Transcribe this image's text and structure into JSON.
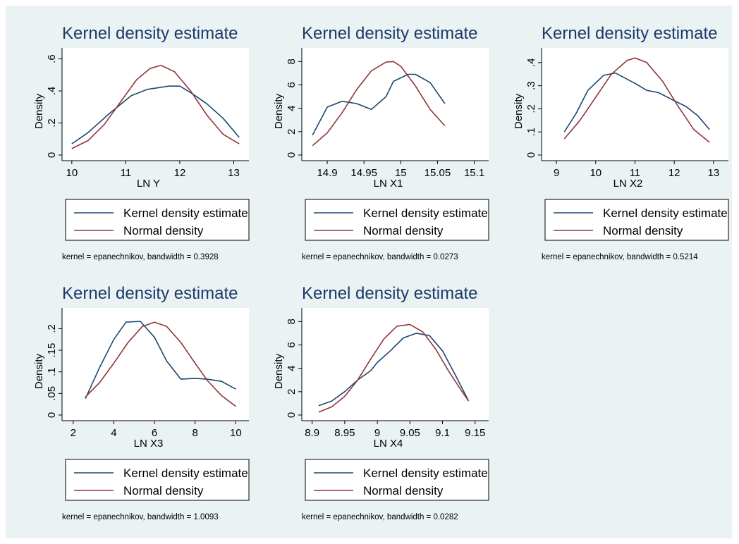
{
  "colors": {
    "background": "#eaf2f3",
    "kernel_line": "#1a476f",
    "normal_line": "#90353b",
    "title": "#1a3a6b"
  },
  "chart_data": [
    {
      "type": "line",
      "title": "Kernel density estimate",
      "xlabel": "LN Y",
      "ylabel": "Density",
      "xticks": [
        10,
        11,
        12,
        13
      ],
      "yticks": [
        0,
        0.2,
        0.4,
        0.6
      ],
      "ytick_labels": [
        "0",
        ".2",
        ".4",
        ".6"
      ],
      "xlim": [
        9.95,
        13.15
      ],
      "ylim": [
        0,
        0.62
      ],
      "series": [
        {
          "name": "Kernel density estimate",
          "color": "#1a476f",
          "x": [
            10.0,
            10.3,
            10.7,
            11.1,
            11.4,
            11.8,
            12.0,
            12.2,
            12.5,
            12.8,
            13.1
          ],
          "y": [
            0.07,
            0.14,
            0.26,
            0.37,
            0.41,
            0.43,
            0.43,
            0.39,
            0.32,
            0.23,
            0.11
          ]
        },
        {
          "name": "Normal density",
          "color": "#90353b",
          "x": [
            10.0,
            10.3,
            10.6,
            10.9,
            11.2,
            11.45,
            11.65,
            11.9,
            12.2,
            12.5,
            12.8,
            13.1
          ],
          "y": [
            0.04,
            0.09,
            0.19,
            0.33,
            0.47,
            0.54,
            0.56,
            0.52,
            0.4,
            0.25,
            0.13,
            0.07
          ]
        }
      ],
      "legend": [
        "Kernel density estimate",
        "Normal density"
      ],
      "note": "kernel = epanechnikov, bandwidth = 0.3928"
    },
    {
      "type": "line",
      "title": "Kernel density estimate",
      "xlabel": "LN X1",
      "ylabel": "Density",
      "xticks": [
        14.9,
        14.95,
        15,
        15.05,
        15.1
      ],
      "xtick_labels": [
        "14.9",
        "14.95",
        "15",
        "15.05",
        "15.1"
      ],
      "yticks": [
        0,
        2,
        4,
        6,
        8
      ],
      "ytick_labels": [
        "0",
        "2",
        "4",
        "6",
        "8"
      ],
      "xlim": [
        14.875,
        15.11
      ],
      "ylim": [
        0,
        8.5
      ],
      "series": [
        {
          "name": "Kernel density estimate",
          "color": "#1a476f",
          "x": [
            14.88,
            14.9,
            14.92,
            14.94,
            14.96,
            14.98,
            14.99,
            15.01,
            15.02,
            15.04,
            15.06
          ],
          "y": [
            1.7,
            4.1,
            4.6,
            4.4,
            3.9,
            5.0,
            6.3,
            6.9,
            6.9,
            6.2,
            4.4
          ]
        },
        {
          "name": "Normal density",
          "color": "#90353b",
          "x": [
            14.88,
            14.9,
            14.92,
            14.94,
            14.96,
            14.98,
            14.99,
            15.0,
            15.02,
            15.04,
            15.06
          ],
          "y": [
            0.8,
            1.9,
            3.6,
            5.6,
            7.2,
            7.95,
            8.0,
            7.6,
            5.9,
            3.9,
            2.5
          ]
        }
      ],
      "legend": [
        "Kernel density estimate",
        "Normal density"
      ],
      "note": "kernel = epanechnikov, bandwidth = 0.0273"
    },
    {
      "type": "line",
      "title": "Kernel density estimate",
      "xlabel": "LN X2",
      "ylabel": "Density",
      "xticks": [
        9,
        10,
        11,
        12,
        13
      ],
      "yticks": [
        0,
        0.1,
        0.2,
        0.3,
        0.4
      ],
      "ytick_labels": [
        "0",
        ".1",
        ".2",
        ".3",
        ".4"
      ],
      "xlim": [
        8.8,
        13.2
      ],
      "ylim": [
        0,
        0.43
      ],
      "series": [
        {
          "name": "Kernel density estimate",
          "color": "#1a476f",
          "x": [
            9.2,
            9.5,
            9.8,
            10.2,
            10.5,
            11.0,
            11.3,
            11.6,
            12.0,
            12.3,
            12.6,
            12.9
          ],
          "y": [
            0.1,
            0.18,
            0.28,
            0.345,
            0.355,
            0.31,
            0.28,
            0.27,
            0.235,
            0.21,
            0.17,
            0.11
          ]
        },
        {
          "name": "Normal density",
          "color": "#90353b",
          "x": [
            9.2,
            9.6,
            10.0,
            10.4,
            10.8,
            11.0,
            11.3,
            11.7,
            12.1,
            12.5,
            12.9
          ],
          "y": [
            0.07,
            0.15,
            0.25,
            0.35,
            0.41,
            0.42,
            0.4,
            0.32,
            0.21,
            0.11,
            0.055
          ]
        }
      ],
      "legend": [
        "Kernel density estimate",
        "Normal density"
      ],
      "note": "kernel = epanechnikov, bandwidth = 0.5214"
    },
    {
      "type": "line",
      "title": "Kernel density estimate",
      "xlabel": "LN X3",
      "ylabel": "Density",
      "xticks": [
        2,
        4,
        6,
        8,
        10
      ],
      "yticks": [
        0,
        0.05,
        0.1,
        0.15,
        0.2
      ],
      "ytick_labels": [
        "0",
        ".05",
        ".1",
        ".15",
        ".2"
      ],
      "xlim": [
        1.8,
        10.3
      ],
      "ylim": [
        0,
        0.23
      ],
      "series": [
        {
          "name": "Kernel density estimate",
          "color": "#1a476f",
          "x": [
            2.6,
            3.3,
            4.0,
            4.6,
            5.3,
            6.0,
            6.6,
            7.3,
            8.0,
            8.6,
            9.3,
            10.0
          ],
          "y": [
            0.038,
            0.11,
            0.175,
            0.215,
            0.217,
            0.18,
            0.125,
            0.083,
            0.085,
            0.083,
            0.078,
            0.06
          ]
        },
        {
          "name": "Normal density",
          "color": "#90353b",
          "x": [
            2.6,
            3.3,
            4.0,
            4.7,
            5.4,
            6.0,
            6.6,
            7.3,
            8.0,
            8.6,
            9.3,
            10.0
          ],
          "y": [
            0.042,
            0.075,
            0.12,
            0.168,
            0.205,
            0.215,
            0.205,
            0.168,
            0.12,
            0.08,
            0.045,
            0.02
          ]
        }
      ],
      "legend": [
        "Kernel density estimate",
        "Normal density"
      ],
      "note": "kernel = epanechnikov, bandwidth = 1.0093"
    },
    {
      "type": "line",
      "title": "Kernel density estimate",
      "xlabel": "LN X4",
      "ylabel": "Density",
      "xticks": [
        8.9,
        8.95,
        9,
        9.05,
        9.1,
        9.15
      ],
      "xtick_labels": [
        "8.9",
        "8.95",
        "9",
        "9.05",
        "9.1",
        "9.15"
      ],
      "yticks": [
        0,
        2,
        4,
        6,
        8
      ],
      "ytick_labels": [
        "0",
        "2",
        "4",
        "6",
        "8"
      ],
      "xlim": [
        8.895,
        9.16
      ],
      "ylim": [
        0,
        8.5
      ],
      "series": [
        {
          "name": "Kernel density estimate",
          "color": "#1a476f",
          "x": [
            8.91,
            8.93,
            8.95,
            8.97,
            8.99,
            9.0,
            9.02,
            9.04,
            9.06,
            9.08,
            9.1,
            9.12,
            9.14
          ],
          "y": [
            0.8,
            1.2,
            2.0,
            3.0,
            3.8,
            4.5,
            5.5,
            6.6,
            7.0,
            6.8,
            5.5,
            3.4,
            1.2
          ]
        },
        {
          "name": "Normal density",
          "color": "#90353b",
          "x": [
            8.91,
            8.93,
            8.95,
            8.97,
            8.99,
            9.01,
            9.03,
            9.05,
            9.07,
            9.09,
            9.11,
            9.13,
            9.14
          ],
          "y": [
            0.25,
            0.7,
            1.6,
            3.0,
            4.8,
            6.5,
            7.6,
            7.75,
            7.1,
            5.6,
            3.7,
            2.0,
            1.2
          ]
        }
      ],
      "legend": [
        "Kernel density estimate",
        "Normal density"
      ],
      "note": "kernel = epanechnikov, bandwidth = 0.0282"
    }
  ]
}
